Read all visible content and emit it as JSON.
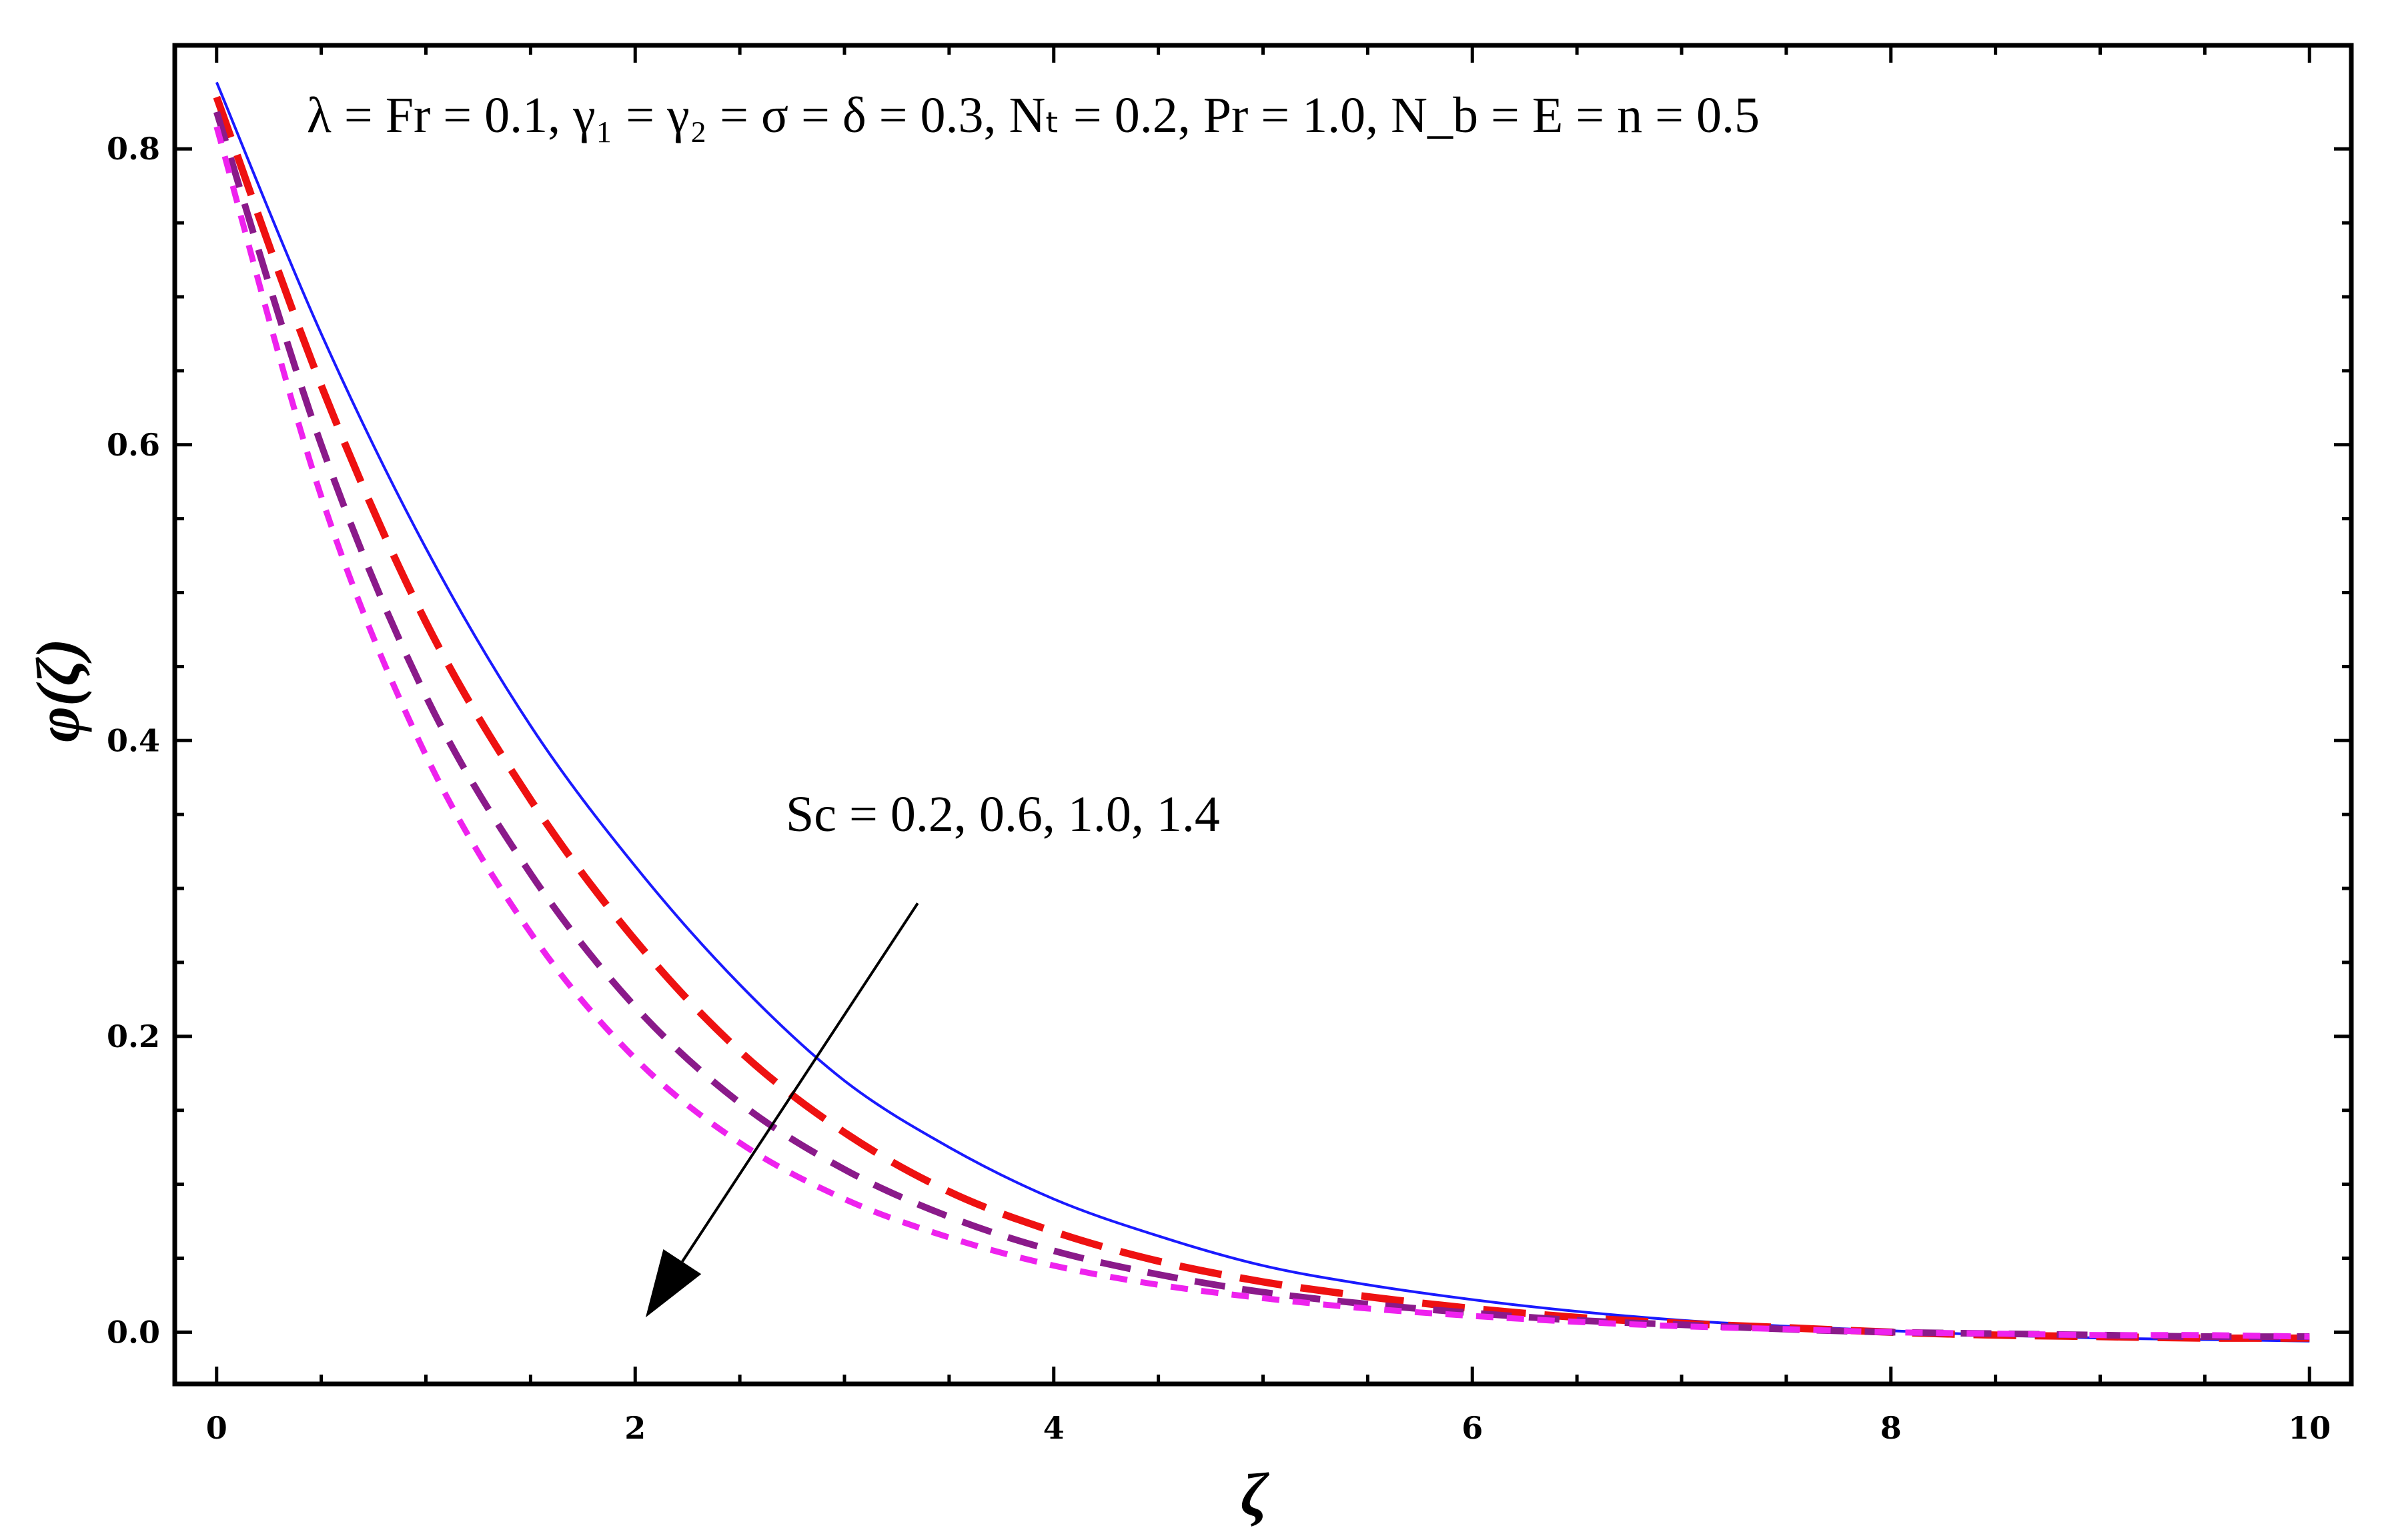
{
  "chart_data": {
    "type": "line",
    "title": "",
    "parameter_text": "λ = Fr = 0.1, γ₁ = γ₂ = σ = δ = 0.3, Nₜ = 0.2, Pr = 1.0, N_b = E = n = 0.5",
    "annotation": {
      "text": "Sc = 0.2, 0.6, 1.0, 1.4",
      "arrow_from": [
        3.35,
        0.29
      ],
      "arrow_to": [
        2.05,
        0.01
      ]
    },
    "xlabel": "ζ",
    "ylabel": "φ(ζ)",
    "xlim": [
      -0.2,
      10.2
    ],
    "ylim": [
      -0.035,
      0.87
    ],
    "x_ticks": [
      0,
      2,
      4,
      6,
      8,
      10
    ],
    "x_tick_labels": [
      "0",
      "2",
      "4",
      "6",
      "8",
      "10"
    ],
    "y_ticks": [
      0.0,
      0.2,
      0.4,
      0.6,
      0.8
    ],
    "y_tick_labels": [
      "0.0",
      "0.2",
      "0.4",
      "0.6",
      "0.8"
    ],
    "grid": false,
    "series": [
      {
        "color": "#1a1aff",
        "style": "solid",
        "x": [
          0,
          0.5,
          1,
          1.5,
          2,
          2.5,
          3,
          3.5,
          4,
          4.5,
          5,
          5.5,
          6,
          6.5,
          7,
          7.5,
          8,
          8.5,
          9,
          9.5,
          10
        ],
        "y": [
          0.845,
          0.675,
          0.53,
          0.41,
          0.315,
          0.235,
          0.17,
          0.125,
          0.09,
          0.065,
          0.045,
          0.032,
          0.022,
          0.014,
          0.008,
          0.004,
          0.001,
          -0.002,
          -0.004,
          -0.005,
          -0.006
        ]
      },
      {
        "color": "#ee1111",
        "style": "long-dash",
        "x": [
          0,
          0.5,
          1,
          1.5,
          2,
          2.5,
          3,
          3.5,
          4,
          4.5,
          5,
          5.5,
          6,
          6.5,
          7,
          7.5,
          8,
          8.5,
          9,
          9.5,
          10
        ],
        "y": [
          0.835,
          0.64,
          0.48,
          0.36,
          0.265,
          0.19,
          0.135,
          0.095,
          0.068,
          0.048,
          0.034,
          0.024,
          0.016,
          0.01,
          0.006,
          0.003,
          0.0,
          -0.002,
          -0.003,
          -0.004,
          -0.004
        ]
      },
      {
        "color": "#8a1a8a",
        "style": "medium-dash",
        "x": [
          0,
          0.5,
          1,
          1.5,
          2,
          2.5,
          3,
          3.5,
          4,
          4.5,
          5,
          5.5,
          6,
          6.5,
          7,
          7.5,
          8,
          8.5,
          9,
          9.5,
          10
        ],
        "y": [
          0.825,
          0.6,
          0.43,
          0.31,
          0.22,
          0.155,
          0.11,
          0.078,
          0.055,
          0.039,
          0.027,
          0.019,
          0.013,
          0.008,
          0.005,
          0.002,
          0.0,
          -0.001,
          -0.002,
          -0.003,
          -0.003
        ]
      },
      {
        "color": "#ee22ee",
        "style": "short-dash",
        "x": [
          0,
          0.5,
          1,
          1.5,
          2,
          2.5,
          3,
          3.5,
          4,
          4.5,
          5,
          5.5,
          6,
          6.5,
          7,
          7.5,
          8,
          8.5,
          9,
          9.5,
          10
        ],
        "y": [
          0.815,
          0.565,
          0.39,
          0.27,
          0.185,
          0.128,
          0.09,
          0.064,
          0.045,
          0.032,
          0.023,
          0.016,
          0.011,
          0.007,
          0.004,
          0.002,
          0.0,
          -0.001,
          -0.002,
          -0.002,
          -0.003
        ]
      }
    ]
  }
}
